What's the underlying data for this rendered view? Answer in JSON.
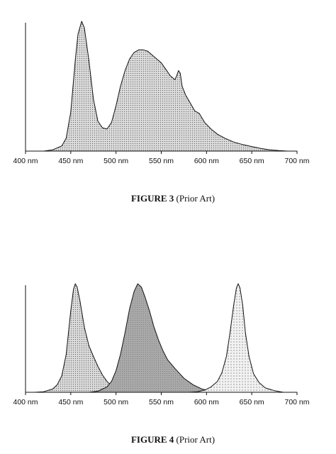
{
  "chart_data": [
    {
      "type": "area",
      "caption": {
        "label": "FIGURE 3",
        "note": " (Prior Art)"
      },
      "xlabel": "",
      "ylabel": "",
      "xlim": [
        400,
        700
      ],
      "ylim": [
        0,
        1
      ],
      "x_ticks": [
        "400 nm",
        "450 nm",
        "500 nm",
        "550 nm",
        "600 nm",
        "650 nm",
        "700 nm"
      ],
      "x_tick_values": [
        400,
        450,
        500,
        550,
        600,
        650,
        700
      ],
      "grid": false,
      "series": [
        {
          "fill": "dotted-light",
          "points": [
            [
              400,
              0
            ],
            [
              420,
              0
            ],
            [
              430,
              0.01
            ],
            [
              440,
              0.04
            ],
            [
              445,
              0.1
            ],
            [
              450,
              0.3
            ],
            [
              455,
              0.7
            ],
            [
              458,
              0.9
            ],
            [
              462,
              1.0
            ],
            [
              465,
              0.95
            ],
            [
              470,
              0.7
            ],
            [
              475,
              0.4
            ],
            [
              480,
              0.23
            ],
            [
              485,
              0.18
            ],
            [
              490,
              0.17
            ],
            [
              495,
              0.22
            ],
            [
              500,
              0.35
            ],
            [
              505,
              0.5
            ],
            [
              510,
              0.62
            ],
            [
              515,
              0.71
            ],
            [
              520,
              0.76
            ],
            [
              525,
              0.78
            ],
            [
              530,
              0.78
            ],
            [
              535,
              0.77
            ],
            [
              540,
              0.74
            ],
            [
              545,
              0.71
            ],
            [
              550,
              0.68
            ],
            [
              555,
              0.63
            ],
            [
              560,
              0.58
            ],
            [
              565,
              0.55
            ],
            [
              567,
              0.58
            ],
            [
              569,
              0.62
            ],
            [
              571,
              0.6
            ],
            [
              573,
              0.5
            ],
            [
              577,
              0.43
            ],
            [
              582,
              0.37
            ],
            [
              587,
              0.31
            ],
            [
              592,
              0.29
            ],
            [
              598,
              0.22
            ],
            [
              605,
              0.17
            ],
            [
              612,
              0.13
            ],
            [
              620,
              0.1
            ],
            [
              630,
              0.07
            ],
            [
              640,
              0.05
            ],
            [
              650,
              0.035
            ],
            [
              660,
              0.02
            ],
            [
              670,
              0.01
            ],
            [
              680,
              0.004
            ],
            [
              690,
              0
            ],
            [
              700,
              0
            ]
          ]
        }
      ]
    },
    {
      "type": "area",
      "caption": {
        "label": "FIGURE 4",
        "note": " (Prior Art)"
      },
      "xlabel": "",
      "ylabel": "",
      "xlim": [
        400,
        700
      ],
      "ylim": [
        0,
        1
      ],
      "x_ticks": [
        "400 nm",
        "450 nm",
        "500 nm",
        "550 nm",
        "600 nm",
        "650 nm",
        "700 nm"
      ],
      "x_tick_values": [
        400,
        450,
        500,
        550,
        600,
        650,
        700
      ],
      "grid": false,
      "series": [
        {
          "fill": "dotted-light",
          "points": [
            [
              410,
              0
            ],
            [
              420,
              0.005
            ],
            [
              430,
              0.03
            ],
            [
              435,
              0.07
            ],
            [
              440,
              0.15
            ],
            [
              445,
              0.35
            ],
            [
              450,
              0.75
            ],
            [
              453,
              0.95
            ],
            [
              455,
              1.0
            ],
            [
              457,
              0.97
            ],
            [
              460,
              0.85
            ],
            [
              465,
              0.6
            ],
            [
              470,
              0.43
            ],
            [
              475,
              0.33
            ],
            [
              480,
              0.24
            ],
            [
              485,
              0.16
            ],
            [
              490,
              0.1
            ],
            [
              495,
              0.06
            ],
            [
              500,
              0.03
            ],
            [
              510,
              0.01
            ],
            [
              520,
              0
            ]
          ]
        },
        {
          "fill": "gray",
          "points": [
            [
              470,
              0
            ],
            [
              480,
              0.01
            ],
            [
              490,
              0.05
            ],
            [
              495,
              0.1
            ],
            [
              500,
              0.2
            ],
            [
              505,
              0.35
            ],
            [
              510,
              0.55
            ],
            [
              515,
              0.77
            ],
            [
              520,
              0.93
            ],
            [
              524,
              1.0
            ],
            [
              528,
              0.97
            ],
            [
              532,
              0.88
            ],
            [
              537,
              0.75
            ],
            [
              542,
              0.6
            ],
            [
              547,
              0.48
            ],
            [
              552,
              0.38
            ],
            [
              557,
              0.3
            ],
            [
              565,
              0.22
            ],
            [
              575,
              0.13
            ],
            [
              585,
              0.07
            ],
            [
              595,
              0.03
            ],
            [
              605,
              0.01
            ],
            [
              615,
              0
            ]
          ]
        },
        {
          "fill": "dotted-sparse",
          "points": [
            [
              580,
              0
            ],
            [
              590,
              0.005
            ],
            [
              598,
              0.02
            ],
            [
              605,
              0.05
            ],
            [
              612,
              0.1
            ],
            [
              617,
              0.18
            ],
            [
              622,
              0.33
            ],
            [
              626,
              0.55
            ],
            [
              630,
              0.8
            ],
            [
              633,
              0.96
            ],
            [
              635,
              1.0
            ],
            [
              637,
              0.96
            ],
            [
              640,
              0.8
            ],
            [
              643,
              0.55
            ],
            [
              647,
              0.33
            ],
            [
              652,
              0.17
            ],
            [
              658,
              0.09
            ],
            [
              665,
              0.04
            ],
            [
              675,
              0.015
            ],
            [
              685,
              0
            ],
            [
              700,
              0
            ]
          ]
        }
      ]
    }
  ]
}
